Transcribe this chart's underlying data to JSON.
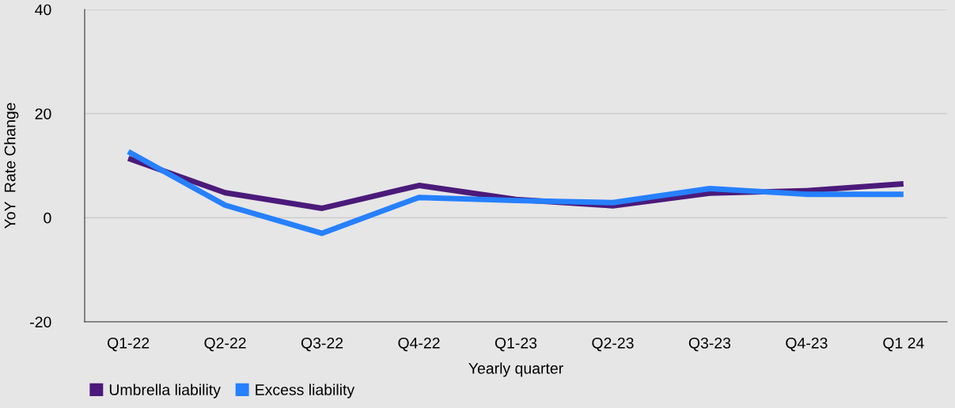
{
  "chart_data": {
    "type": "line",
    "xlabel": "Yearly quarter",
    "ylabel": "YoY  Rate Change",
    "categories": [
      "Q1-22",
      "Q2-22",
      "Q3-22",
      "Q4-22",
      "Q1-23",
      "Q2-23",
      "Q3-23",
      "Q4-23",
      "Q1 24"
    ],
    "series": [
      {
        "name": "Umbrella liability",
        "color": "#4b1a7a",
        "values": [
          11.4,
          4.8,
          1.8,
          6.2,
          3.5,
          2.3,
          4.7,
          5.2,
          6.5
        ]
      },
      {
        "name": "Excess liability",
        "color": "#2680ff",
        "values": [
          12.7,
          2.4,
          -3.0,
          3.9,
          3.3,
          2.9,
          5.6,
          4.5,
          4.5
        ]
      }
    ],
    "ylim": [
      -20,
      40
    ],
    "yticks": [
      -20,
      0,
      20,
      40
    ],
    "grid": "y",
    "legend": "bottom left",
    "marker": "none",
    "line_style": "solid"
  }
}
